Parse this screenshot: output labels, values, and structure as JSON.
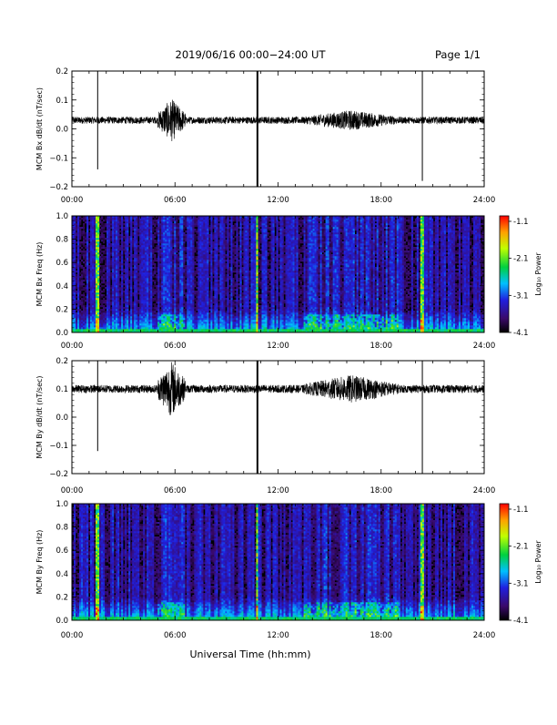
{
  "header": {
    "date_range": "2019/06/16  00:00−24:00 UT",
    "page": "Page 1/1"
  },
  "x_axis": {
    "title": "Universal Time (hh:mm)",
    "ticks": [
      "00:00",
      "06:00",
      "12:00",
      "18:00",
      "24:00"
    ],
    "range_hours": [
      0,
      24
    ]
  },
  "colorbar": {
    "label": "Log₁₀ Power",
    "ticks": [
      "-1.1",
      "-2.1",
      "-3.1",
      "-4.1"
    ],
    "range": [
      -4.1,
      -1.1
    ]
  },
  "chart_data": [
    {
      "type": "line",
      "ylabel": "MCM Bx dB/dt (nT/sec)",
      "ylim": [
        -0.2,
        0.2
      ],
      "yticks": [
        "0.2",
        "0.1",
        "0.0",
        "−0.1",
        "−0.2"
      ],
      "baseline": 0.03,
      "noise_amplitude": 0.012,
      "spikes": [
        {
          "hour": 1.5,
          "min": -0.14,
          "max": 0.2
        },
        {
          "hour": 10.8,
          "min": -0.2,
          "max": 0.2
        },
        {
          "hour": 20.4,
          "min": -0.18,
          "max": 0.2
        }
      ],
      "disturbances": [
        {
          "hour_start": 5.0,
          "hour_end": 6.6,
          "min": -0.06,
          "max": 0.09
        },
        {
          "hour_start": 13.5,
          "hour_end": 19.0,
          "min": -0.01,
          "max": 0.06
        }
      ]
    },
    {
      "type": "heatmap",
      "ylabel": "MCM Bx Freq (Hz)",
      "ylim": [
        0.0,
        1.0
      ],
      "yticks": [
        "1.0",
        "0.8",
        "0.6",
        "0.4",
        "0.2",
        "0.0"
      ],
      "zlim": [
        -4.1,
        -1.1
      ],
      "bright_columns_hours": [
        1.5,
        10.8,
        20.4
      ],
      "active_hours": [
        [
          5.0,
          6.6
        ],
        [
          13.5,
          19.0
        ]
      ]
    },
    {
      "type": "line",
      "ylabel": "MCM By dB/dt (nT/sec)",
      "ylim": [
        -0.2,
        0.2
      ],
      "yticks": [
        "0.2",
        "0.1",
        "0.0",
        "−0.1",
        "−0.2"
      ],
      "baseline": 0.1,
      "noise_amplitude": 0.014,
      "spikes": [
        {
          "hour": 1.5,
          "min": -0.12,
          "max": 0.2
        },
        {
          "hour": 10.8,
          "min": -0.2,
          "max": 0.2
        },
        {
          "hour": 20.4,
          "min": -0.2,
          "max": 0.2
        }
      ],
      "disturbances": [
        {
          "hour_start": 5.0,
          "hour_end": 6.6,
          "min": 0.0,
          "max": 0.2
        },
        {
          "hour_start": 13.5,
          "hour_end": 19.0,
          "min": 0.05,
          "max": 0.15
        }
      ]
    },
    {
      "type": "heatmap",
      "ylabel": "MCM By Freq (Hz)",
      "ylim": [
        0.0,
        1.0
      ],
      "yticks": [
        "1.0",
        "0.8",
        "0.6",
        "0.4",
        "0.2",
        "0.0"
      ],
      "zlim": [
        -4.1,
        -1.1
      ],
      "bright_columns_hours": [
        1.5,
        10.8,
        20.4
      ],
      "active_hours": [
        [
          5.0,
          6.6
        ],
        [
          13.5,
          19.0
        ]
      ]
    }
  ]
}
